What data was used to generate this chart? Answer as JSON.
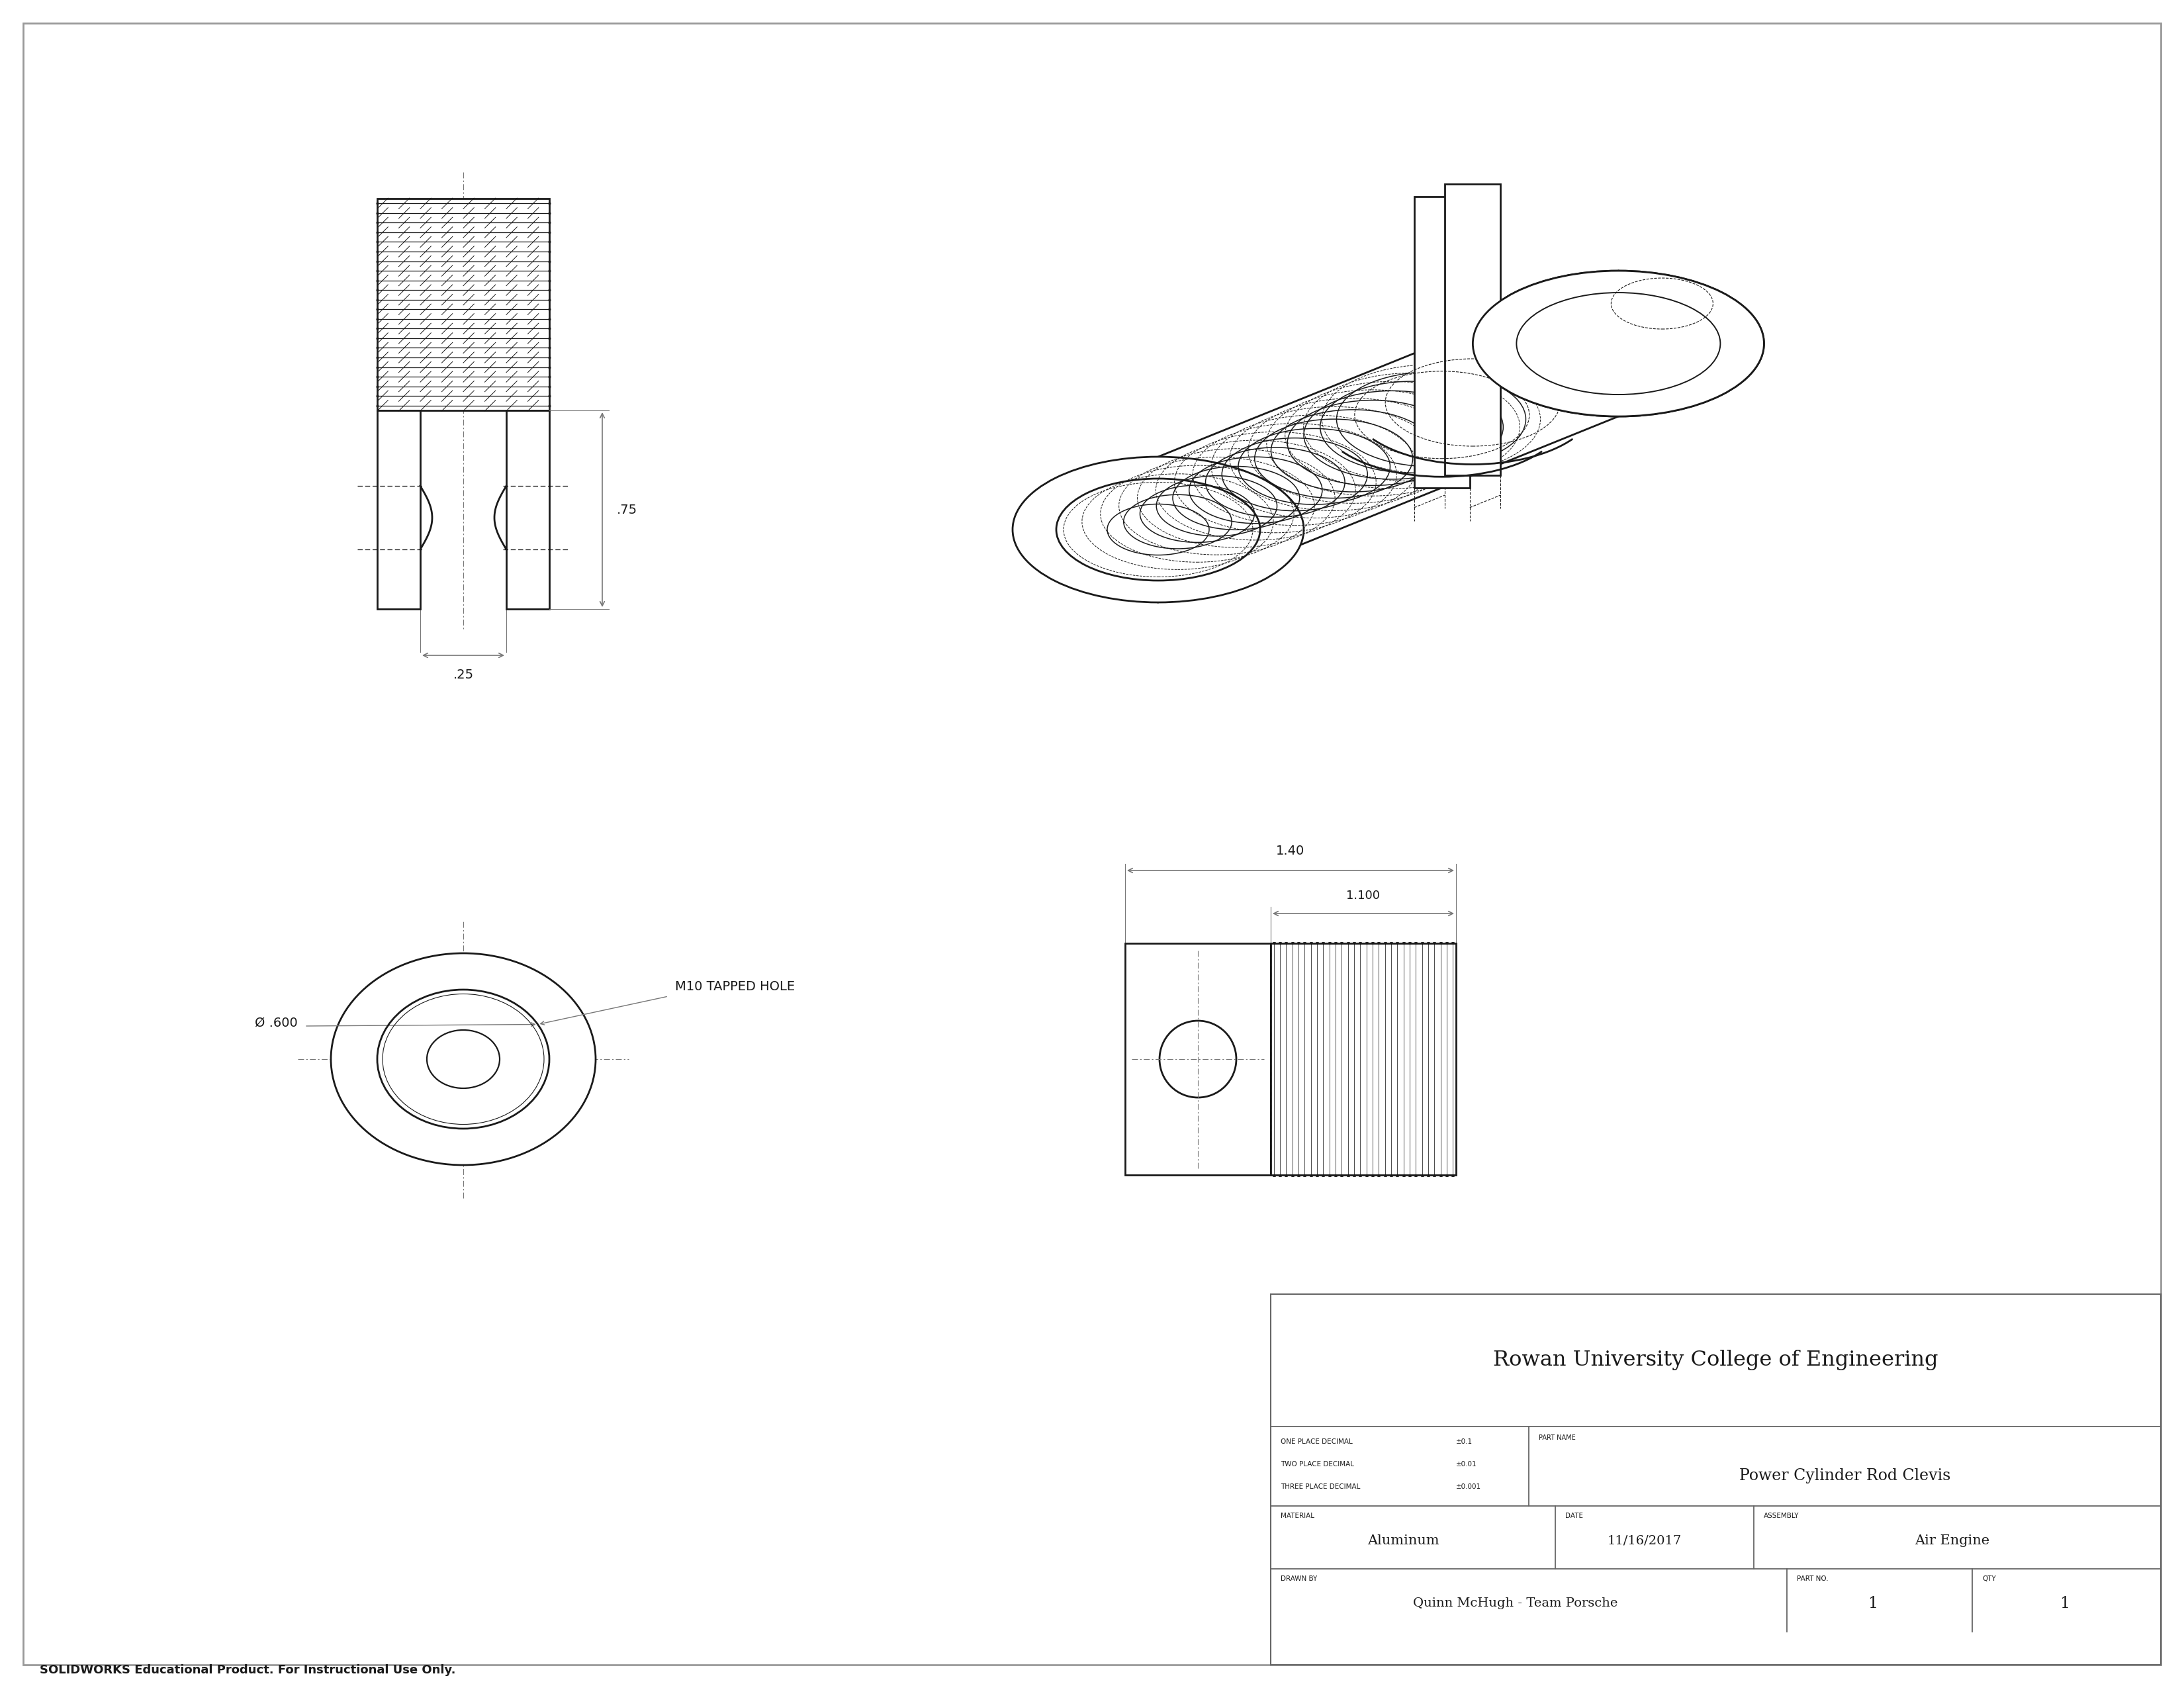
{
  "bg_color": "#ffffff",
  "line_color": "#1a1a1a",
  "dim_color": "#777777",
  "title": "Rowan University College of Engineering",
  "part_name": "Power Cylinder Rod Clevis",
  "material": "Aluminum",
  "date": "11/16/2017",
  "assembly": "Air Engine",
  "drawn_by": "Quinn McHugh - Team Porsche",
  "part_no": "1",
  "qty": "1",
  "one_place": "±0.1",
  "two_place": "±0.01",
  "three_place": "±0.001",
  "footer_text": "SOLIDWORKS Educational Product. For Instructional Use Only.",
  "dim_075": ".75",
  "dim_025": ".25",
  "dim_0600": "Ø .600",
  "dim_140": "1.40",
  "dim_1100": "1.100",
  "label_m10": "M10 TAPPED HOLE"
}
